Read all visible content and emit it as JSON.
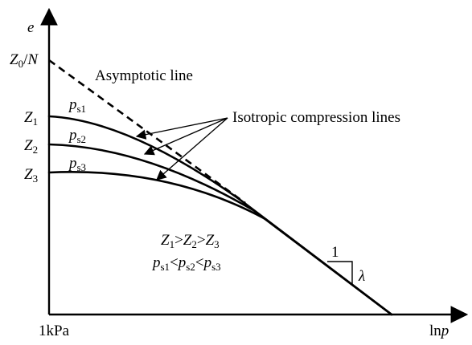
{
  "labels": {
    "y_axis": "e",
    "x_axis": "lnp",
    "x_origin": "1kPa",
    "asymptote_intercept": "Z0/N",
    "asymptotic_line": "Asymptotic line",
    "isotropic_compression_lines": "Isotropic compression lines",
    "z1": "Z1",
    "z2": "Z2",
    "z3": "Z3",
    "ps1": "ps1",
    "ps2": "ps2",
    "ps3": "ps3",
    "relation_z": "Z1>Z2>Z3",
    "relation_ps": "ps1<ps2<ps3",
    "slope_run": "1",
    "slope_rise": "λ"
  }
}
